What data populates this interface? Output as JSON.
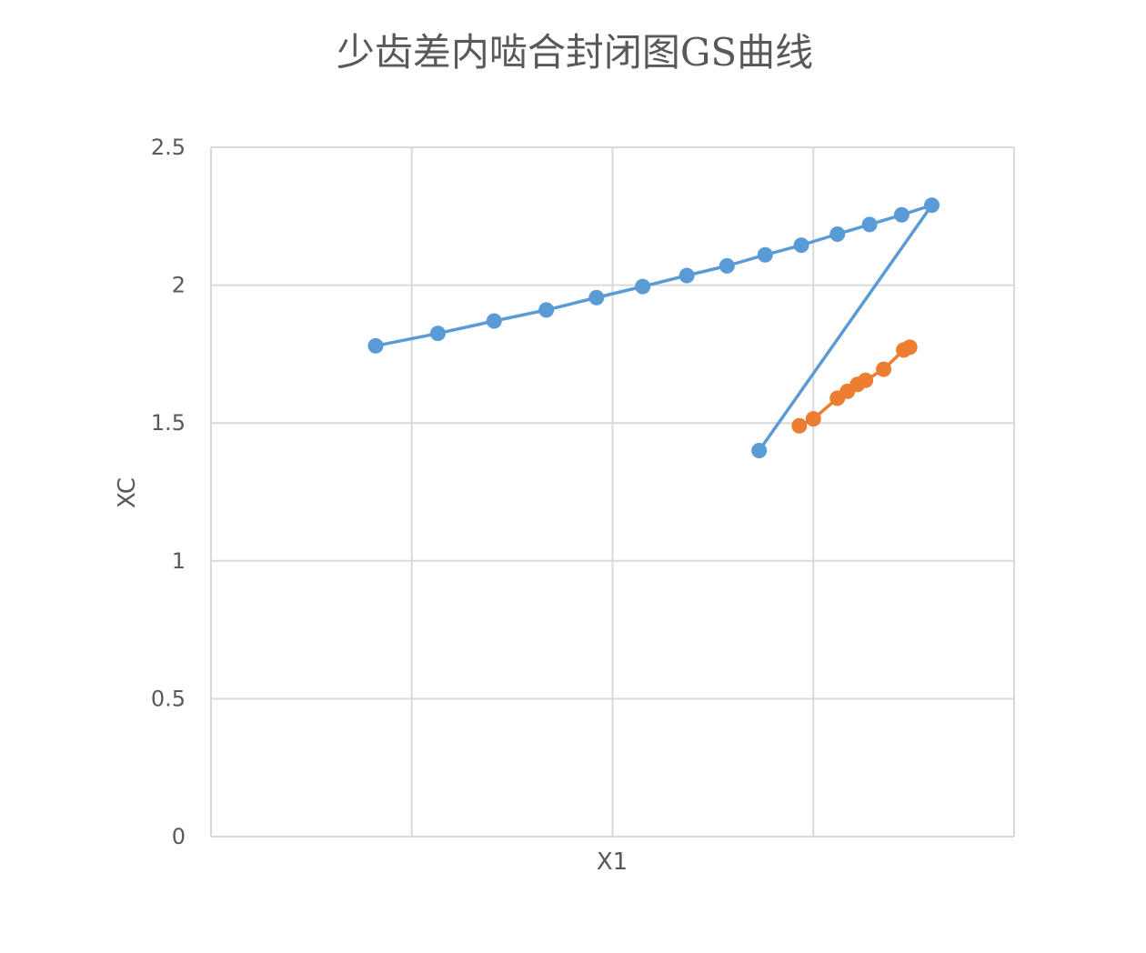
{
  "chart_data": {
    "type": "scatter",
    "title": "少齿差内啮合封闭图GS曲线",
    "xlabel": "X1",
    "ylabel": "XC",
    "ylim": [
      0,
      2.5
    ],
    "xlim": [
      0,
      4
    ],
    "yticks": [
      "0",
      "0.5",
      "1",
      "1.5",
      "2",
      "2.5"
    ],
    "grid": true,
    "legend": "none",
    "series": [
      {
        "color": "#5b9bd5",
        "x": [
          0.82,
          1.13,
          1.41,
          1.67,
          1.92,
          2.15,
          2.37,
          2.57,
          2.76,
          2.94,
          3.12,
          3.28,
          3.44,
          3.59,
          2.73
        ],
        "y": [
          1.78,
          1.825,
          1.87,
          1.91,
          1.955,
          1.995,
          2.035,
          2.07,
          2.11,
          2.145,
          2.185,
          2.22,
          2.255,
          2.29,
          1.4
        ]
      },
      {
        "color": "#ed7d31",
        "x": [
          2.93,
          3.0,
          3.12,
          3.17,
          3.22,
          3.26,
          3.35,
          3.45,
          3.48
        ],
        "y": [
          1.49,
          1.515,
          1.59,
          1.615,
          1.64,
          1.655,
          1.695,
          1.765,
          1.775
        ]
      }
    ]
  }
}
